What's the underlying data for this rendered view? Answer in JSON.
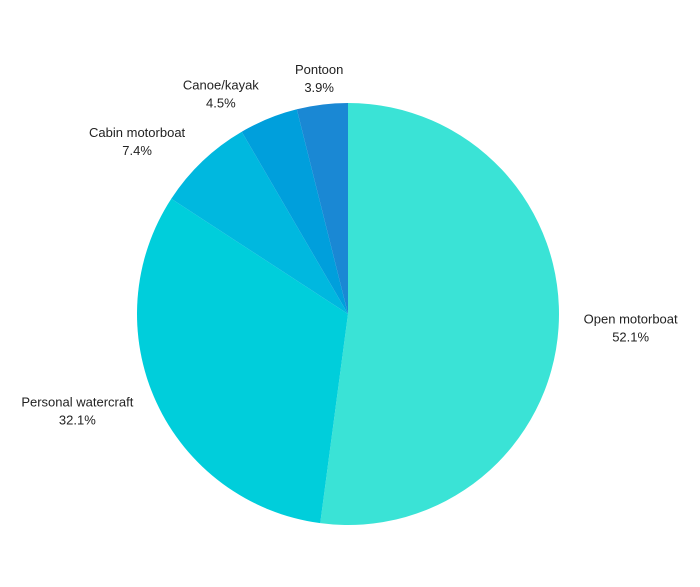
{
  "chart_data": {
    "type": "pie",
    "categories": [
      "Open motorboat",
      "Personal watercraft",
      "Cabin motorboat",
      "Canoe/kayak",
      "Pontoon"
    ],
    "values": [
      52.1,
      32.1,
      7.4,
      4.5,
      3.9
    ],
    "value_labels": [
      "52.1%",
      "32.1%",
      "7.4%",
      "4.5%",
      "3.9%"
    ],
    "colors": [
      "#3ae3d6",
      "#00cedb",
      "#00b8df",
      "#009fdc",
      "#1a88d4"
    ]
  }
}
